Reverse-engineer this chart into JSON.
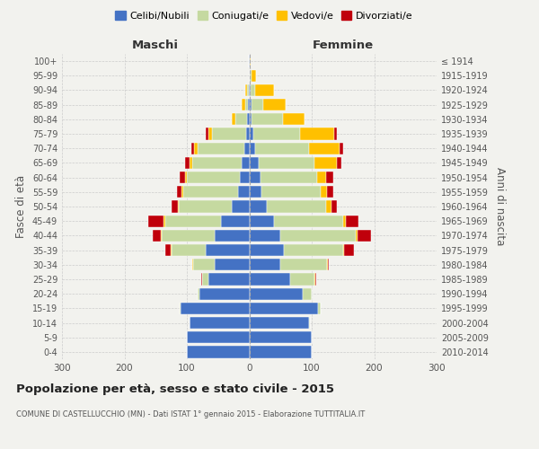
{
  "age_groups": [
    "0-4",
    "5-9",
    "10-14",
    "15-19",
    "20-24",
    "25-29",
    "30-34",
    "35-39",
    "40-44",
    "45-49",
    "50-54",
    "55-59",
    "60-64",
    "65-69",
    "70-74",
    "75-79",
    "80-84",
    "85-89",
    "90-94",
    "95-99",
    "100+"
  ],
  "birth_years": [
    "2010-2014",
    "2005-2009",
    "2000-2004",
    "1995-1999",
    "1990-1994",
    "1985-1989",
    "1980-1984",
    "1975-1979",
    "1970-1974",
    "1965-1969",
    "1960-1964",
    "1955-1959",
    "1950-1954",
    "1945-1949",
    "1940-1944",
    "1935-1939",
    "1930-1934",
    "1925-1929",
    "1920-1924",
    "1915-1919",
    "≤ 1914"
  ],
  "maschi": {
    "celibi": [
      100,
      100,
      95,
      110,
      80,
      65,
      55,
      70,
      55,
      45,
      28,
      18,
      15,
      12,
      8,
      5,
      3,
      2,
      1,
      0,
      1
    ],
    "coniugati": [
      0,
      0,
      0,
      2,
      3,
      10,
      35,
      55,
      85,
      90,
      85,
      88,
      85,
      80,
      75,
      55,
      20,
      5,
      2,
      0,
      0
    ],
    "vedove": [
      0,
      0,
      0,
      0,
      0,
      1,
      1,
      1,
      2,
      2,
      2,
      2,
      3,
      3,
      5,
      5,
      5,
      5,
      3,
      0,
      0
    ],
    "divorziate": [
      0,
      0,
      0,
      0,
      0,
      1,
      1,
      8,
      12,
      25,
      10,
      8,
      8,
      8,
      5,
      5,
      0,
      0,
      0,
      0,
      0
    ]
  },
  "femmine": {
    "nubili": [
      100,
      100,
      95,
      110,
      85,
      65,
      50,
      55,
      50,
      40,
      28,
      20,
      18,
      15,
      10,
      6,
      4,
      3,
      2,
      1,
      1
    ],
    "coniugate": [
      0,
      0,
      2,
      5,
      15,
      40,
      75,
      95,
      120,
      110,
      95,
      95,
      90,
      90,
      85,
      75,
      50,
      20,
      8,
      2,
      0
    ],
    "vedove": [
      0,
      0,
      0,
      0,
      0,
      1,
      1,
      2,
      3,
      5,
      8,
      10,
      15,
      35,
      50,
      55,
      35,
      35,
      30,
      8,
      1
    ],
    "divorziate": [
      0,
      0,
      0,
      0,
      0,
      1,
      1,
      15,
      22,
      20,
      10,
      10,
      12,
      8,
      5,
      5,
      0,
      0,
      0,
      0,
      0
    ]
  },
  "colors": {
    "celibi": "#4472c4",
    "coniugati": "#c5d9a0",
    "vedove": "#ffc000",
    "divorziate": "#c0000b"
  },
  "xlim": 300,
  "title": "Popolazione per età, sesso e stato civile - 2015",
  "subtitle": "COMUNE DI CASTELLUCCHIO (MN) - Dati ISTAT 1° gennaio 2015 - Elaborazione TUTTITALIA.IT",
  "ylabel_left": "Fasce di età",
  "ylabel_right": "Anni di nascita",
  "xlabel_left": "Maschi",
  "xlabel_right": "Femmine",
  "legend_labels": [
    "Celibi/Nubili",
    "Coniugati/e",
    "Vedovi/e",
    "Divorziati/e"
  ],
  "bg_color": "#f2f2ee"
}
